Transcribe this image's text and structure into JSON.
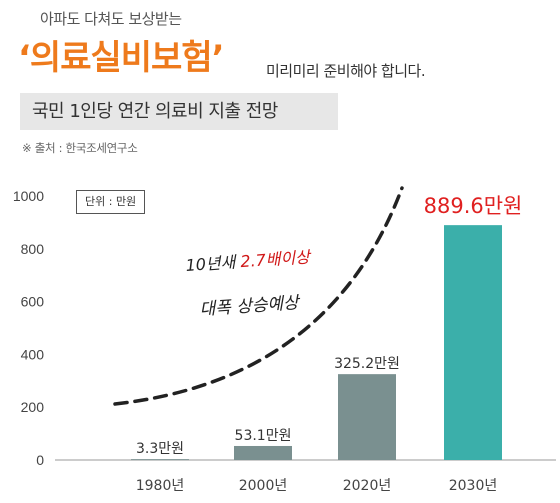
{
  "header": {
    "intro": "아파도 다쳐도 보상받는",
    "headline": "‘의료실비보험’",
    "headline_suffix": "미리미리 준비해야 합니다.",
    "subtitle": "국민 1인당 연간 의료비 지출 전망",
    "source": "※ 출처 : 한국조세연구소"
  },
  "colors": {
    "accent_orange": "#ee7a1c",
    "bar_gray": "#7a9090",
    "bar_teal": "#3bafaa",
    "highlight_red": "#e02020",
    "handwriting_red": "#d01818"
  },
  "chart_data": {
    "type": "bar",
    "unit_label": "단위 : 만원",
    "categories": [
      "1980년",
      "2000년",
      "2020년",
      "2030년"
    ],
    "values": [
      3.3,
      53.1,
      325.2,
      889.6
    ],
    "value_labels": [
      "3.3만원",
      "53.1만원",
      "325.2만원",
      "889.6만원"
    ],
    "yticks": [
      0,
      200,
      400,
      600,
      800,
      1000
    ],
    "ylim": [
      0,
      1000
    ],
    "grid": false,
    "annotation": {
      "line1_black": "10년새 ",
      "line1_red": "2.7배이상",
      "line2": "대폭 상승예상"
    }
  }
}
